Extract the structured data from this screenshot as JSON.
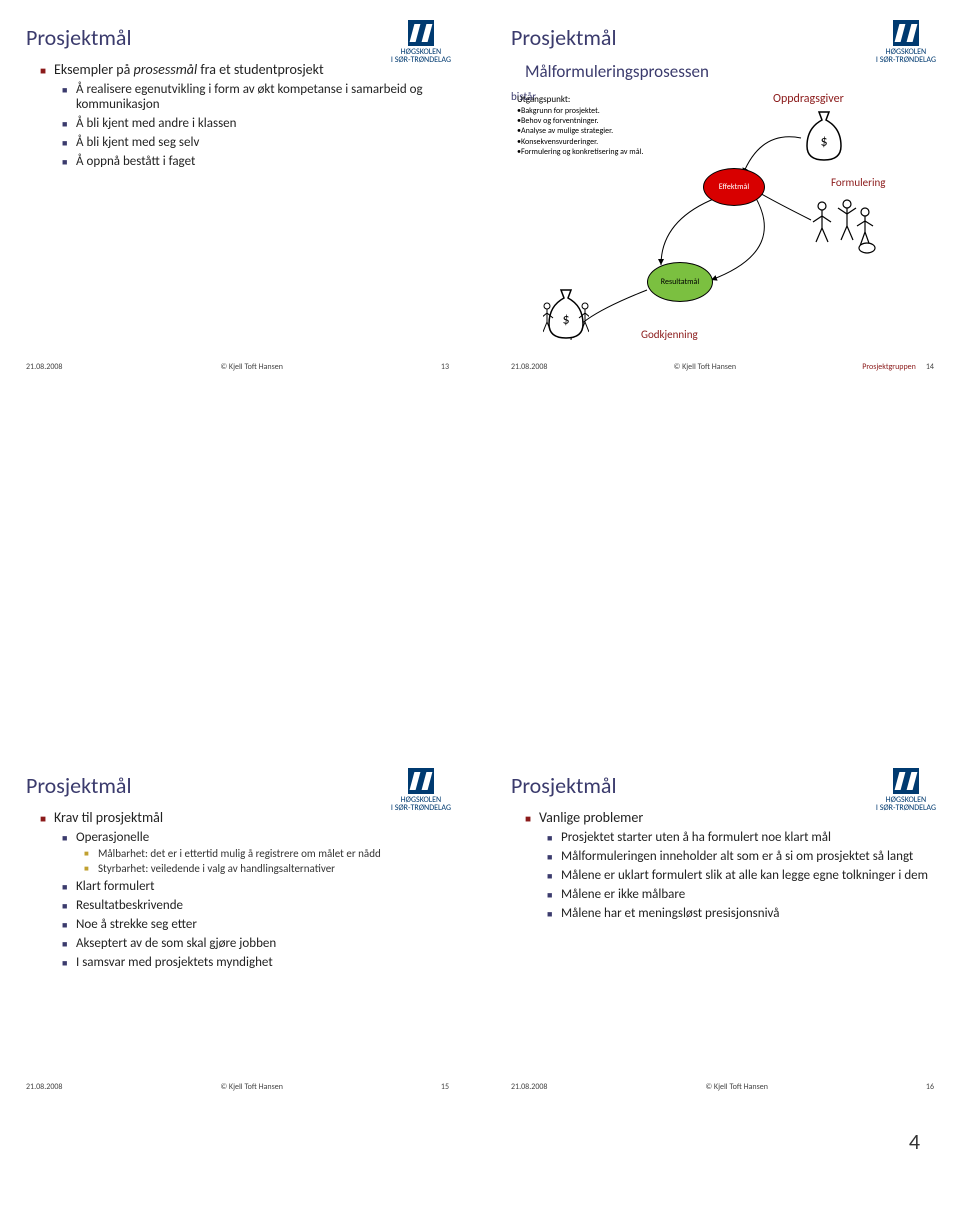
{
  "logo": {
    "line1": "HØGSKOLEN",
    "line2": "I SØR-TRØNDELAG"
  },
  "footer": {
    "date": "21.08.2008",
    "author": "© Kjell Toft Hansen"
  },
  "pageNumber": "4",
  "slide13": {
    "title": "Prosjektmål",
    "intro": "Eksempler på <span class='italic'>prosessmål</span> fra et studentprosjekt",
    "bullets": [
      "Å realisere egenutvikling i form av økt kompetanse i samarbeid og kommunikasjon",
      "Å bli kjent med andre i klassen",
      "Å bli kjent med seg selv",
      "Å oppnå bestått i faget"
    ],
    "num": "13"
  },
  "slide14": {
    "title": "Prosjektmål",
    "subtitle": "Målformuleringsprosessen",
    "utg": {
      "head": "Utgangspunkt:",
      "items": [
        "Bakgrunn for prosjektet.",
        "Behov og forventninger.",
        "Analyse av mulige strategier.",
        "Konsekvensvurderinger.",
        "Formulering og konkretisering av mål."
      ]
    },
    "oppdragsgiver": "Oppdragsgiver",
    "formulering": "Formulering",
    "bistar": "bistår",
    "effektmal": "Effektmål",
    "resultatmal": "Resultatmål",
    "godkjenning": "Godkjenning",
    "prosjektgruppen": "Prosjektgruppen",
    "num": "14",
    "colors": {
      "effekt": "#d80000",
      "result": "#7bc040",
      "accent": "#8b1a1a"
    }
  },
  "slide15": {
    "title": "Prosjektmål",
    "heading": "Krav til prosjektmål",
    "op": "Operasjonelle",
    "op_items": [
      "Målbarhet: det er i ettertid mulig å registrere om målet er nådd",
      "Styrbarhet: veiledende i valg av handlingsalternativer"
    ],
    "rest": [
      "Klart formulert",
      "Resultatbeskrivende",
      "Noe å strekke seg etter",
      "Akseptert av de som skal gjøre jobben",
      "I samsvar med prosjektets myndighet"
    ],
    "num": "15"
  },
  "slide16": {
    "title": "Prosjektmål",
    "heading": "Vanlige problemer",
    "items": [
      "Prosjektet starter uten å ha formulert noe klart mål",
      "Målformuleringen inneholder alt som er å si om prosjektet så langt",
      "Målene er uklart formulert slik at alle kan legge egne tolkninger i dem",
      "Målene er ikke målbare",
      "Målene har et meningsløst presisjonsnivå"
    ],
    "num": "16"
  }
}
